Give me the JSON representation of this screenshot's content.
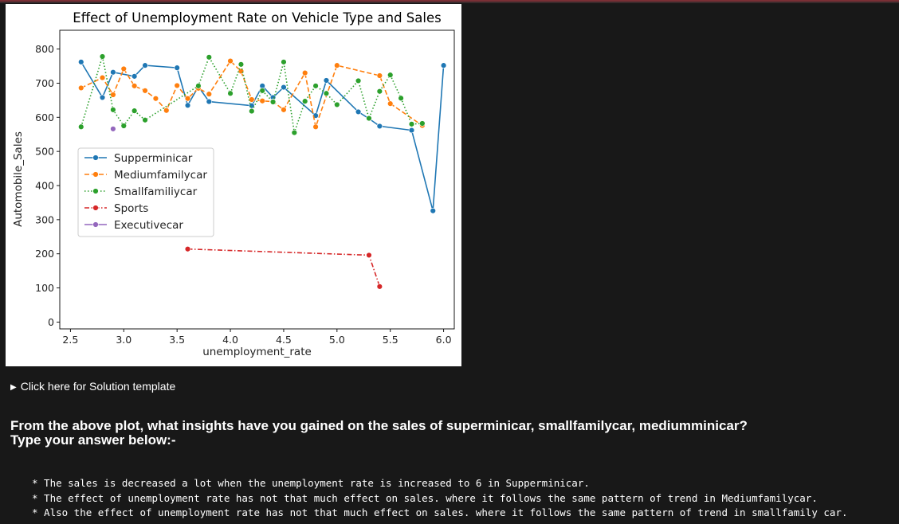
{
  "chart_data": {
    "type": "line",
    "title": "Effect of Unemployment Rate on Vehicle Type and Sales",
    "xlabel": "unemployment_rate",
    "ylabel": "Automobile_Sales",
    "xlim": [
      2.4,
      6.1
    ],
    "ylim": [
      -20,
      855
    ],
    "xticks": [
      "2.5",
      "3.0",
      "3.5",
      "4.0",
      "4.5",
      "5.0",
      "5.5",
      "6.0"
    ],
    "yticks": [
      "0",
      "100",
      "200",
      "300",
      "400",
      "500",
      "600",
      "700",
      "800"
    ],
    "legend_position": "center-left",
    "grid": false,
    "series": [
      {
        "name": "Supperminicar",
        "color": "#1f77b4",
        "style": "solid",
        "points": [
          [
            2.6,
            762
          ],
          [
            2.8,
            658
          ],
          [
            2.9,
            732
          ],
          [
            3.1,
            720
          ],
          [
            3.2,
            752
          ],
          [
            3.5,
            745
          ],
          [
            3.6,
            635
          ],
          [
            3.7,
            690
          ],
          [
            3.8,
            646
          ],
          [
            4.2,
            634
          ],
          [
            4.3,
            692
          ],
          [
            4.4,
            658
          ],
          [
            4.5,
            688
          ],
          [
            4.8,
            605
          ],
          [
            4.9,
            708
          ],
          [
            5.2,
            616
          ],
          [
            5.3,
            596
          ],
          [
            5.4,
            574
          ],
          [
            5.7,
            562
          ],
          [
            5.9,
            326
          ],
          [
            6.0,
            752
          ]
        ]
      },
      {
        "name": "Mediumfamilycar",
        "color": "#ff7f0e",
        "style": "dashed",
        "points": [
          [
            2.6,
            686
          ],
          [
            2.8,
            716
          ],
          [
            2.9,
            666
          ],
          [
            3.0,
            742
          ],
          [
            3.1,
            692
          ],
          [
            3.2,
            678
          ],
          [
            3.3,
            655
          ],
          [
            3.4,
            620
          ],
          [
            3.5,
            693
          ],
          [
            3.6,
            655
          ],
          [
            3.7,
            685
          ],
          [
            3.8,
            668
          ],
          [
            4.0,
            765
          ],
          [
            4.1,
            735
          ],
          [
            4.2,
            652
          ],
          [
            4.3,
            648
          ],
          [
            4.4,
            646
          ],
          [
            4.5,
            622
          ],
          [
            4.7,
            730
          ],
          [
            4.8,
            572
          ],
          [
            5.0,
            752
          ],
          [
            5.4,
            722
          ],
          [
            5.5,
            640
          ],
          [
            5.8,
            576
          ]
        ]
      },
      {
        "name": "Smallfamiliycar",
        "color": "#2ca02c",
        "style": "dotted",
        "points": [
          [
            2.6,
            572
          ],
          [
            2.8,
            778
          ],
          [
            2.9,
            622
          ],
          [
            3.0,
            575
          ],
          [
            3.1,
            619
          ],
          [
            3.2,
            592
          ],
          [
            3.7,
            692
          ],
          [
            3.8,
            776
          ],
          [
            4.0,
            670
          ],
          [
            4.1,
            755
          ],
          [
            4.2,
            618
          ],
          [
            4.3,
            678
          ],
          [
            4.4,
            645
          ],
          [
            4.5,
            762
          ],
          [
            4.6,
            555
          ],
          [
            4.7,
            647
          ],
          [
            4.8,
            692
          ],
          [
            4.9,
            670
          ],
          [
            5.0,
            637
          ],
          [
            5.2,
            707
          ],
          [
            5.3,
            597
          ],
          [
            5.4,
            676
          ],
          [
            5.5,
            724
          ],
          [
            5.6,
            656
          ],
          [
            5.7,
            580
          ],
          [
            5.8,
            582
          ]
        ]
      },
      {
        "name": "Sports",
        "color": "#d62728",
        "style": "dashdot",
        "points": [
          [
            3.6,
            214
          ],
          [
            5.3,
            196
          ],
          [
            5.4,
            104
          ]
        ]
      },
      {
        "name": "Executivecar",
        "color": "#9467bd",
        "style": "solid",
        "points": [
          [
            2.9,
            566
          ]
        ]
      }
    ]
  },
  "details": {
    "summary": "Click here for Solution template"
  },
  "question": {
    "line1": "From the above plot, what insights have you gained on the sales of superminicar, smallfamilycar, mediumminicar?",
    "line2": "Type your answer below:-"
  },
  "answers": [
    "* The sales is decreased a lot when the unemployment rate is increased to 6 in Supperminicar.",
    "* The effect of unemployment rate has not that much effect on sales. where it follows the same pattern of trend in Mediumfamilycar.",
    "* Also the effect of unemployment rate has not that much effect on sales. where it follows the same pattern of trend in smallfamily car."
  ]
}
